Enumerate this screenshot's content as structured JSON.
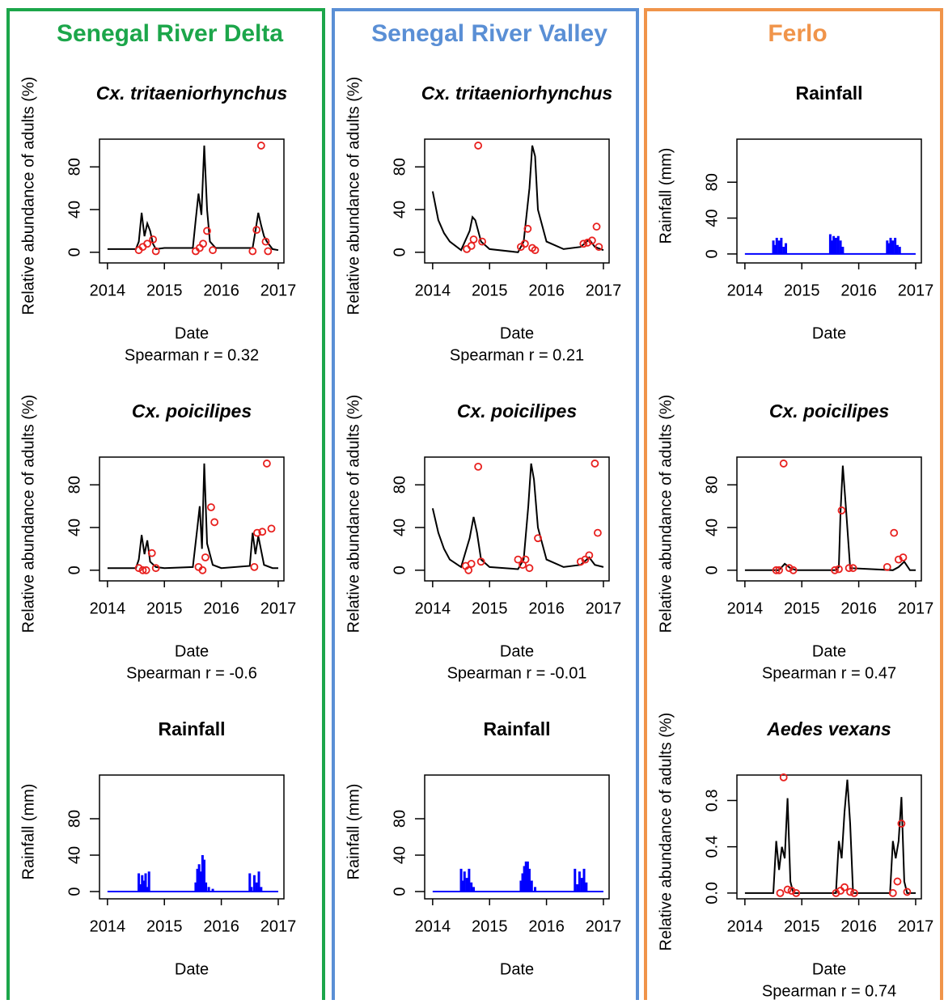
{
  "columns": [
    {
      "title": "Senegal River Delta",
      "color": "#1ca64a"
    },
    {
      "title": "Senegal River Valley",
      "color": "#5a8fd5"
    },
    {
      "title": "Ferlo",
      "color": "#f0944a"
    }
  ],
  "chart_data": [
    {
      "type": "line",
      "title": "Cx. tritaeniorhynchus",
      "xlabel": "Date",
      "ylabel": "Relative abundance of adults (%)",
      "subtitle": "Spearman r =  0.32",
      "xlim": [
        2013.86,
        2017.1
      ],
      "xticks": [
        2014,
        2015,
        2016,
        2017
      ],
      "ylim": [
        -10,
        106
      ],
      "yticks": [
        0,
        40,
        80
      ],
      "line": {
        "color": "#000000",
        "x": [
          2014,
          2014.5,
          2014.55,
          2014.6,
          2014.65,
          2014.7,
          2014.75,
          2014.8,
          2014.85,
          2015,
          2015.5,
          2015.55,
          2015.6,
          2015.65,
          2015.7,
          2015.75,
          2015.8,
          2015.9,
          2016,
          2016.55,
          2016.6,
          2016.65,
          2016.7,
          2016.75,
          2016.8,
          2016.9,
          2017
        ],
        "values": [
          3,
          3,
          10,
          37,
          15,
          27,
          20,
          8,
          3,
          4,
          4,
          30,
          55,
          35,
          100,
          40,
          10,
          4,
          4,
          4,
          20,
          37,
          25,
          15,
          10,
          3,
          2
        ]
      },
      "points": {
        "color": "#e8201e",
        "x": [
          2014.55,
          2014.62,
          2014.7,
          2014.8,
          2014.85,
          2015.55,
          2015.62,
          2015.68,
          2015.75,
          2015.85,
          2016.55,
          2016.62,
          2016.7,
          2016.78,
          2016.82
        ],
        "values": [
          2,
          5,
          8,
          12,
          1,
          1,
          4,
          8,
          20,
          2,
          1,
          21,
          100,
          10,
          1
        ]
      }
    },
    {
      "type": "line",
      "title": "Cx. poicilipes",
      "xlabel": "Date",
      "ylabel": "Relative abundance of adults (%)",
      "subtitle": "Spearman r =  -0.6",
      "xlim": [
        2013.86,
        2017.1
      ],
      "xticks": [
        2014,
        2015,
        2016,
        2017
      ],
      "ylim": [
        -10,
        106
      ],
      "yticks": [
        0,
        40,
        80
      ],
      "line": {
        "color": "#000000",
        "x": [
          2014,
          2014.5,
          2014.55,
          2014.6,
          2014.65,
          2014.7,
          2014.75,
          2014.85,
          2015,
          2015.5,
          2015.58,
          2015.62,
          2015.66,
          2015.7,
          2015.75,
          2015.85,
          2016,
          2016.5,
          2016.55,
          2016.6,
          2016.65,
          2016.75,
          2016.9,
          2017
        ],
        "values": [
          2,
          2,
          10,
          33,
          15,
          28,
          8,
          3,
          2,
          3,
          40,
          60,
          20,
          100,
          25,
          5,
          2,
          4,
          35,
          15,
          32,
          5,
          2,
          2
        ]
      },
      "points": {
        "color": "#e8201e",
        "x": [
          2014.55,
          2014.62,
          2014.68,
          2014.78,
          2014.85,
          2015.6,
          2015.67,
          2015.72,
          2015.82,
          2015.88,
          2016.58,
          2016.63,
          2016.72,
          2016.8,
          2016.88
        ],
        "values": [
          2,
          0,
          0,
          16,
          2,
          3,
          0,
          12,
          59,
          45,
          3,
          35,
          36,
          100,
          39
        ]
      }
    },
    {
      "type": "bar",
      "title": "Rainfall",
      "xlabel": "Date",
      "ylabel": "Rainfall (mm)",
      "xlim": [
        2013.86,
        2017.1
      ],
      "xticks": [
        2014,
        2015,
        2016,
        2017
      ],
      "ylim": [
        -8,
        128
      ],
      "yticks": [
        0,
        40,
        80
      ],
      "color": "#0000ff",
      "x": [
        2014.55,
        2014.58,
        2014.61,
        2014.64,
        2014.67,
        2014.7,
        2014.73,
        2015.55,
        2015.58,
        2015.61,
        2015.64,
        2015.67,
        2015.7,
        2015.73,
        2015.78,
        2015.85,
        2016.5,
        2016.53,
        2016.58,
        2016.62,
        2016.66,
        2016.7
      ],
      "values": [
        20,
        8,
        18,
        12,
        20,
        5,
        22,
        10,
        25,
        30,
        22,
        40,
        35,
        10,
        5,
        3,
        20,
        5,
        18,
        10,
        22,
        5
      ]
    },
    {
      "type": "line",
      "title": "Cx. tritaeniorhynchus",
      "xlabel": "Date",
      "ylabel": "Relative abundance of adults (%)",
      "subtitle": "Spearman r =  0.21",
      "xlim": [
        2013.86,
        2017.1
      ],
      "xticks": [
        2014,
        2015,
        2016,
        2017
      ],
      "ylim": [
        -10,
        106
      ],
      "yticks": [
        0,
        40,
        80
      ],
      "line": {
        "color": "#000000",
        "x": [
          2014,
          2014.1,
          2014.2,
          2014.3,
          2014.5,
          2014.65,
          2014.7,
          2014.75,
          2014.85,
          2015,
          2015.5,
          2015.6,
          2015.7,
          2015.75,
          2015.8,
          2015.85,
          2016,
          2016.3,
          2016.6,
          2016.75,
          2016.85,
          2017
        ],
        "values": [
          57,
          30,
          18,
          10,
          2,
          20,
          33,
          30,
          10,
          3,
          0,
          10,
          60,
          100,
          90,
          40,
          10,
          3,
          5,
          12,
          5,
          2
        ]
      },
      "points": {
        "color": "#e8201e",
        "x": [
          2014.6,
          2014.68,
          2014.72,
          2014.8,
          2014.87,
          2015.55,
          2015.62,
          2015.67,
          2015.75,
          2015.8,
          2016.65,
          2016.72,
          2016.8,
          2016.88,
          2016.92
        ],
        "values": [
          3,
          6,
          12,
          100,
          10,
          5,
          8,
          22,
          4,
          2,
          8,
          9,
          11,
          24,
          5
        ]
      }
    },
    {
      "type": "line",
      "title": "Cx. poicilipes",
      "xlabel": "Date",
      "ylabel": "Relative abundance of adults (%)",
      "subtitle": "Spearman r =  -0.01",
      "xlim": [
        2013.86,
        2017.1
      ],
      "xticks": [
        2014,
        2015,
        2016,
        2017
      ],
      "ylim": [
        -10,
        106
      ],
      "yticks": [
        0,
        40,
        80
      ],
      "line": {
        "color": "#000000",
        "x": [
          2014,
          2014.1,
          2014.2,
          2014.3,
          2014.5,
          2014.65,
          2014.72,
          2014.78,
          2014.85,
          2015,
          2015.5,
          2015.6,
          2015.68,
          2015.73,
          2015.78,
          2015.85,
          2016,
          2016.3,
          2016.6,
          2016.75,
          2016.85,
          2017
        ],
        "values": [
          58,
          35,
          20,
          10,
          3,
          30,
          50,
          35,
          10,
          3,
          1,
          10,
          60,
          100,
          85,
          40,
          10,
          3,
          5,
          12,
          5,
          3
        ]
      },
      "points": {
        "color": "#e8201e",
        "x": [
          2014.58,
          2014.63,
          2014.68,
          2014.8,
          2014.85,
          2015.5,
          2015.58,
          2015.63,
          2015.7,
          2015.85,
          2016.6,
          2016.68,
          2016.75,
          2016.85,
          2016.9
        ],
        "values": [
          4,
          0,
          6,
          97,
          8,
          10,
          5,
          10,
          2,
          30,
          8,
          10,
          14,
          100,
          35
        ]
      }
    },
    {
      "type": "bar",
      "title": "Rainfall",
      "xlabel": "Date",
      "ylabel": "Rainfall (mm)",
      "xlim": [
        2013.86,
        2017.1
      ],
      "xticks": [
        2014,
        2015,
        2016,
        2017
      ],
      "ylim": [
        -8,
        128
      ],
      "yticks": [
        0,
        40,
        80
      ],
      "color": "#0000ff",
      "x": [
        2014.5,
        2014.53,
        2014.56,
        2014.6,
        2014.64,
        2014.68,
        2014.72,
        2015.55,
        2015.58,
        2015.61,
        2015.64,
        2015.67,
        2015.7,
        2015.74,
        2015.8,
        2016.5,
        2016.54,
        2016.58,
        2016.62,
        2016.66,
        2016.7
      ],
      "values": [
        25,
        12,
        22,
        15,
        25,
        10,
        5,
        12,
        20,
        28,
        33,
        33,
        25,
        12,
        5,
        25,
        8,
        22,
        15,
        25,
        10
      ]
    },
    {
      "type": "bar",
      "title": "Rainfall",
      "xlabel": "Date",
      "ylabel": "Rainfall (mm)",
      "xlim": [
        2013.86,
        2017.1
      ],
      "xticks": [
        2014,
        2015,
        2016,
        2017
      ],
      "ylim": [
        -10,
        128
      ],
      "yticks": [
        0,
        40,
        80
      ],
      "color": "#0000ff",
      "x": [
        2014.5,
        2014.53,
        2014.56,
        2014.6,
        2014.64,
        2014.68,
        2014.72,
        2015.5,
        2015.53,
        2015.56,
        2015.6,
        2015.64,
        2015.68,
        2015.72,
        2016.5,
        2016.53,
        2016.56,
        2016.6,
        2016.64,
        2016.68,
        2016.72
      ],
      "values": [
        15,
        10,
        18,
        15,
        18,
        8,
        12,
        22,
        15,
        20,
        18,
        20,
        15,
        8,
        15,
        12,
        18,
        15,
        18,
        10,
        8
      ]
    },
    {
      "type": "line",
      "title": "Cx. poicilipes",
      "xlabel": "Date",
      "ylabel": "Relative abundance of adults (%)",
      "subtitle": "Spearman r = 0.47",
      "xlim": [
        2013.86,
        2017.1
      ],
      "xticks": [
        2014,
        2015,
        2016,
        2017
      ],
      "ylim": [
        -10,
        106
      ],
      "yticks": [
        0,
        40,
        80
      ],
      "line": {
        "color": "#000000",
        "x": [
          2014,
          2014.6,
          2014.7,
          2014.8,
          2014.9,
          2015.6,
          2015.65,
          2015.68,
          2015.72,
          2015.78,
          2015.85,
          2016.6,
          2016.7,
          2016.8,
          2016.9,
          2017
        ],
        "values": [
          0,
          0,
          6,
          2,
          0,
          0,
          3,
          55,
          98,
          55,
          2,
          0,
          3,
          8,
          0,
          0
        ]
      },
      "points": {
        "color": "#e8201e",
        "x": [
          2014.55,
          2014.6,
          2014.68,
          2014.78,
          2014.85,
          2015.58,
          2015.65,
          2015.7,
          2015.83,
          2015.9,
          2016.5,
          2016.62,
          2016.7,
          2016.78
        ],
        "values": [
          0,
          0,
          100,
          2,
          0,
          0,
          1,
          56,
          2,
          2,
          3,
          35,
          10,
          12
        ]
      }
    },
    {
      "type": "line",
      "title": "Aedes vexans",
      "xlabel": "Date",
      "ylabel": "Relative abundance of adults (%)",
      "subtitle": "Spearman r =  0.74",
      "xlim": [
        2013.86,
        2017.1
      ],
      "xticks": [
        2014,
        2015,
        2016,
        2017
      ],
      "ylim": [
        -0.05,
        1.02
      ],
      "yticks": [
        {
          "value": 0,
          "label": "0.0"
        },
        {
          "value": 0.4,
          "label": "0.4"
        },
        {
          "value": 0.8,
          "label": "0.8"
        }
      ],
      "line": {
        "color": "#000000",
        "x": [
          2014,
          2014.5,
          2014.55,
          2014.6,
          2014.65,
          2014.7,
          2014.75,
          2014.8,
          2014.85,
          2015.6,
          2015.65,
          2015.7,
          2015.75,
          2015.8,
          2015.85,
          2015.9,
          2016.55,
          2016.6,
          2016.65,
          2016.7,
          2016.75,
          2016.8,
          2016.85,
          2017
        ],
        "values": [
          0,
          0,
          0.45,
          0.2,
          0.4,
          0.3,
          0.82,
          0.1,
          0,
          0,
          0.45,
          0.3,
          0.7,
          0.98,
          0.6,
          0,
          0,
          0.45,
          0.3,
          0.45,
          0.83,
          0.1,
          0,
          0
        ]
      },
      "points": {
        "color": "#e8201e",
        "x": [
          2014.62,
          2014.68,
          2014.75,
          2014.82,
          2014.9,
          2015.6,
          2015.68,
          2015.75,
          2015.85,
          2015.92,
          2016.6,
          2016.68,
          2016.75,
          2016.85
        ],
        "values": [
          0,
          1,
          0.03,
          0.02,
          0,
          0,
          0.02,
          0.05,
          0.01,
          0,
          0,
          0.1,
          0.6,
          0.01
        ]
      }
    }
  ]
}
